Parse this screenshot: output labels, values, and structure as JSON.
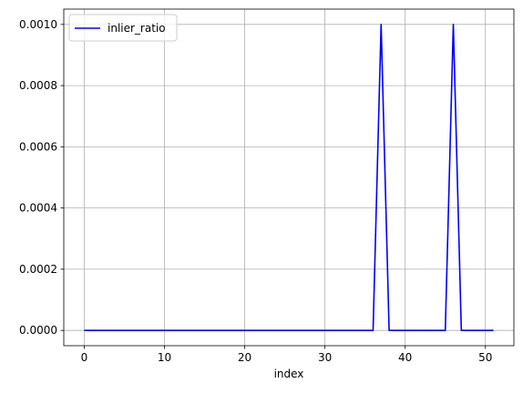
{
  "chart_data": {
    "type": "line",
    "title": "",
    "xlabel": "index",
    "ylabel": "",
    "xlim": [
      -2.55,
      53.55
    ],
    "ylim": [
      -5e-05,
      0.00105
    ],
    "xticks": [
      0,
      10,
      20,
      30,
      40,
      50
    ],
    "xtick_labels": [
      "0",
      "10",
      "20",
      "30",
      "40",
      "50"
    ],
    "yticks": [
      0,
      0.0002,
      0.0004,
      0.0006,
      0.0008,
      0.001
    ],
    "ytick_labels": [
      "0.0000",
      "0.0002",
      "0.0004",
      "0.0006",
      "0.0008",
      "0.0010"
    ],
    "grid": true,
    "legend_position": "upper-left",
    "series": [
      {
        "name": "inlier_ratio",
        "color": "#0000ff",
        "x": [
          0,
          1,
          2,
          3,
          4,
          5,
          6,
          7,
          8,
          9,
          10,
          11,
          12,
          13,
          14,
          15,
          16,
          17,
          18,
          19,
          20,
          21,
          22,
          23,
          24,
          25,
          26,
          27,
          28,
          29,
          30,
          31,
          32,
          33,
          34,
          35,
          36,
          37,
          38,
          39,
          40,
          41,
          42,
          43,
          44,
          45,
          46,
          47,
          48,
          49,
          50,
          51
        ],
        "y": [
          0,
          0,
          0,
          0,
          0,
          0,
          0,
          0,
          0,
          0,
          0,
          0,
          0,
          0,
          0,
          0,
          0,
          0,
          0,
          0,
          0,
          0,
          0,
          0,
          0,
          0,
          0,
          0,
          0,
          0,
          0,
          0,
          0,
          0,
          0,
          0,
          0,
          0.001,
          0,
          0,
          0,
          0,
          0,
          0,
          0,
          0,
          0.001,
          0,
          0,
          0,
          0,
          0
        ]
      }
    ]
  }
}
